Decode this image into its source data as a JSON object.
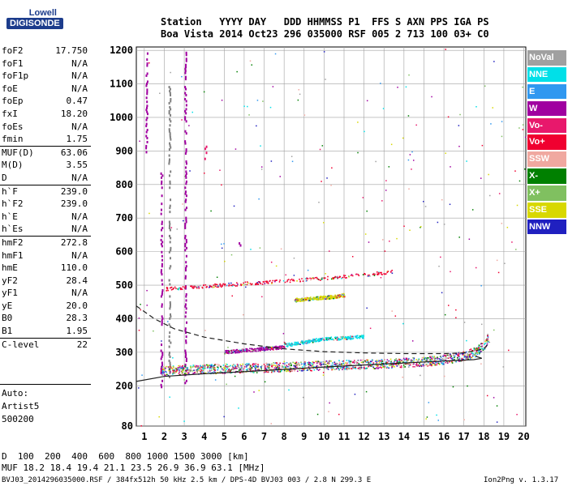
{
  "logo": {
    "top": "Lowell",
    "bottom": "DIGISONDE"
  },
  "header": {
    "line1": "Station   YYYY DAY   DDD HHMMSS P1  FFS S AXN PPS IGA PS",
    "line2": "Boa Vista 2014 Oct23 296 035000 RSF 005 2 713 100 03+ C0"
  },
  "params_groups": [
    [
      [
        "foF2",
        "17.750"
      ],
      [
        "foF1",
        "N/A"
      ],
      [
        "foF1p",
        "N/A"
      ],
      [
        "foE",
        "N/A"
      ],
      [
        "foEp",
        "0.47"
      ],
      [
        "fxI",
        "18.20"
      ],
      [
        "foEs",
        "N/A"
      ],
      [
        "fmin",
        "1.75"
      ]
    ],
    [
      [
        "MUF(D)",
        "63.06"
      ],
      [
        "M(D)",
        "3.55"
      ],
      [
        "D",
        "N/A"
      ]
    ],
    [
      [
        "h`F",
        "239.0"
      ],
      [
        "h`F2",
        "239.0"
      ],
      [
        "h`E",
        "N/A"
      ],
      [
        "h`Es",
        "N/A"
      ]
    ],
    [
      [
        "hmF2",
        "272.8"
      ],
      [
        "hmF1",
        "N/A"
      ],
      [
        "hmE",
        "110.0"
      ],
      [
        "yF2",
        "28.4"
      ],
      [
        "yF1",
        "N/A"
      ],
      [
        "yE",
        "20.0"
      ],
      [
        "B0",
        "28.3"
      ],
      [
        "B1",
        "1.95"
      ]
    ],
    [
      [
        "C-level",
        "22"
      ]
    ]
  ],
  "auto": [
    "Auto:",
    "Artist5",
    "500200"
  ],
  "legend": [
    {
      "label": "NoVal",
      "color": "#a0a0a0"
    },
    {
      "label": "NNE",
      "color": "#00e0e8"
    },
    {
      "label": "E",
      "color": "#3098f0"
    },
    {
      "label": "W",
      "color": "#a000a0"
    },
    {
      "label": "Vo-",
      "color": "#e8186c"
    },
    {
      "label": "Vo+",
      "color": "#f00030"
    },
    {
      "label": "SSW",
      "color": "#f0a8a0"
    },
    {
      "label": "X-",
      "color": "#008000"
    },
    {
      "label": "X+",
      "color": "#80c060"
    },
    {
      "label": "SSE",
      "color": "#d8d800"
    },
    {
      "label": "NNW",
      "color": "#2020c0"
    }
  ],
  "chart_data": {
    "type": "scatter",
    "title": "",
    "xlabel": "",
    "ylabel": "",
    "xlim": [
      0.6,
      20.1
    ],
    "ylim": [
      80,
      1210
    ],
    "x_ticks": [
      1,
      2,
      3,
      4,
      5,
      6,
      7,
      8,
      9,
      10,
      11,
      12,
      13,
      14,
      15,
      16,
      17,
      18,
      19,
      20
    ],
    "y_ticks": [
      80,
      200,
      300,
      400,
      500,
      600,
      700,
      800,
      900,
      1000,
      1100,
      1200
    ],
    "grid": true,
    "traces": [
      {
        "name": "F2 trace O",
        "color": "#e8186c",
        "points": [
          [
            1.8,
            240
          ],
          [
            3,
            243
          ],
          [
            5,
            247
          ],
          [
            7,
            250
          ],
          [
            9,
            254
          ],
          [
            11,
            258
          ],
          [
            13,
            262
          ],
          [
            15,
            268
          ],
          [
            16,
            274
          ],
          [
            17,
            285
          ],
          [
            17.6,
            298
          ],
          [
            18.0,
            318
          ],
          [
            18.2,
            340
          ]
        ]
      },
      {
        "name": "2F trace",
        "color": "#f00030",
        "points": [
          [
            2,
            488
          ],
          [
            4,
            496
          ],
          [
            6,
            504
          ],
          [
            8,
            512
          ],
          [
            10,
            520
          ],
          [
            12,
            530
          ],
          [
            13.5,
            540
          ]
        ]
      },
      {
        "name": "NNE trace",
        "color": "#00e0e8",
        "points": [
          [
            8,
            320
          ],
          [
            9,
            330
          ],
          [
            10,
            340
          ],
          [
            11,
            342
          ],
          [
            12,
            346
          ]
        ]
      },
      {
        "name": "SSE trace",
        "color": "#d8d800",
        "points": [
          [
            8.5,
            455
          ],
          [
            9.5,
            460
          ],
          [
            10.5,
            465
          ],
          [
            11,
            470
          ]
        ]
      },
      {
        "name": "W trace",
        "color": "#a000a0",
        "points": [
          [
            5,
            300
          ],
          [
            6,
            305
          ],
          [
            7,
            310
          ],
          [
            8,
            315
          ]
        ]
      }
    ],
    "profile_solid": [
      [
        0.6,
        213
      ],
      [
        2,
        228
      ],
      [
        4,
        236
      ],
      [
        6,
        242
      ],
      [
        8,
        249
      ],
      [
        10,
        256
      ],
      [
        12,
        262
      ],
      [
        14,
        268
      ],
      [
        16,
        274
      ],
      [
        17.5,
        278
      ],
      [
        17.9,
        282
      ],
      [
        17.6,
        288
      ]
    ],
    "profile_dashed": [
      [
        0.6,
        438
      ],
      [
        1.5,
        400
      ],
      [
        2.5,
        370
      ],
      [
        4,
        345
      ],
      [
        6,
        325
      ],
      [
        8,
        310
      ],
      [
        10,
        302
      ],
      [
        12,
        298
      ],
      [
        14,
        296
      ],
      [
        16,
        296
      ],
      [
        17,
        298
      ],
      [
        18,
        310
      ],
      [
        18.3,
        330
      ]
    ]
  },
  "footer": {
    "d_label": "D",
    "d_values": "  100  200  400  600  800 1000 1500 3000 [km]",
    "muf_label": "MUF",
    "muf_values": " 18.2 18.4 19.4 21.1 23.5 26.9 36.9 63.1 [MHz]",
    "bottom_left": "BVJ03_2014296035000.RSF / 384fx512h 50 kHz 2.5 km / DPS-4D BVJ03 003 / 2.8 N 299.3 E",
    "bottom_right": "Ion2Png v. 1.3.17"
  }
}
